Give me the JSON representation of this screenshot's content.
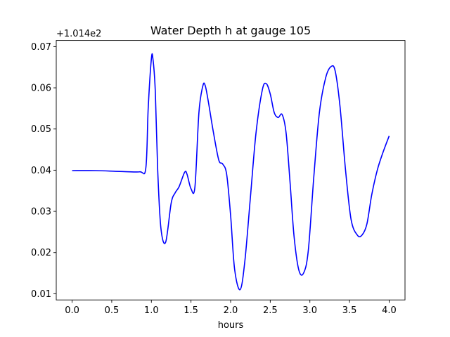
{
  "chart_data": {
    "type": "line",
    "title": "Water Depth h at gauge 105",
    "xlabel": "hours",
    "ylabel": "",
    "offset_label": "+1.014e2",
    "xlim": [
      -0.2,
      4.2
    ],
    "ylim": [
      0.0085,
      0.0715
    ],
    "xticks": [
      0.0,
      0.5,
      1.0,
      1.5,
      2.0,
      2.5,
      3.0,
      3.5,
      4.0
    ],
    "xtick_labels": [
      "0.0",
      "0.5",
      "1.0",
      "1.5",
      "2.0",
      "2.5",
      "3.0",
      "3.5",
      "4.0"
    ],
    "yticks": [
      0.01,
      0.02,
      0.03,
      0.04,
      0.05,
      0.06,
      0.07
    ],
    "ytick_labels": [
      "0.01",
      "0.02",
      "0.03",
      "0.04",
      "0.05",
      "0.06",
      "0.07"
    ],
    "grid": false,
    "series": [
      {
        "color": "#0000ff",
        "x": [
          0.0,
          0.3,
          0.6,
          0.85,
          0.93,
          0.96,
          1.0,
          1.02,
          1.05,
          1.08,
          1.12,
          1.18,
          1.25,
          1.3,
          1.35,
          1.42,
          1.45,
          1.5,
          1.55,
          1.6,
          1.65,
          1.68,
          1.72,
          1.78,
          1.85,
          1.9,
          1.95,
          2.0,
          2.05,
          2.12,
          2.18,
          2.25,
          2.32,
          2.4,
          2.45,
          2.5,
          2.55,
          2.6,
          2.65,
          2.7,
          2.75,
          2.8,
          2.86,
          2.92,
          2.98,
          3.05,
          3.12,
          3.2,
          3.27,
          3.32,
          3.38,
          3.45,
          3.52,
          3.6,
          3.66,
          3.72,
          3.78,
          3.85,
          3.92,
          4.0
        ],
        "y": [
          0.0399,
          0.0399,
          0.0397,
          0.0396,
          0.0405,
          0.055,
          0.067,
          0.067,
          0.059,
          0.04,
          0.026,
          0.0225,
          0.032,
          0.0345,
          0.036,
          0.0395,
          0.039,
          0.0355,
          0.036,
          0.054,
          0.0605,
          0.0605,
          0.0565,
          0.0495,
          0.0425,
          0.0415,
          0.039,
          0.029,
          0.016,
          0.011,
          0.018,
          0.0335,
          0.049,
          0.0595,
          0.061,
          0.0585,
          0.054,
          0.0528,
          0.0535,
          0.049,
          0.037,
          0.024,
          0.0158,
          0.015,
          0.0205,
          0.0385,
          0.054,
          0.0625,
          0.0652,
          0.064,
          0.0555,
          0.04,
          0.028,
          0.0242,
          0.0243,
          0.027,
          0.034,
          0.04,
          0.0442,
          0.0483
        ]
      }
    ]
  }
}
